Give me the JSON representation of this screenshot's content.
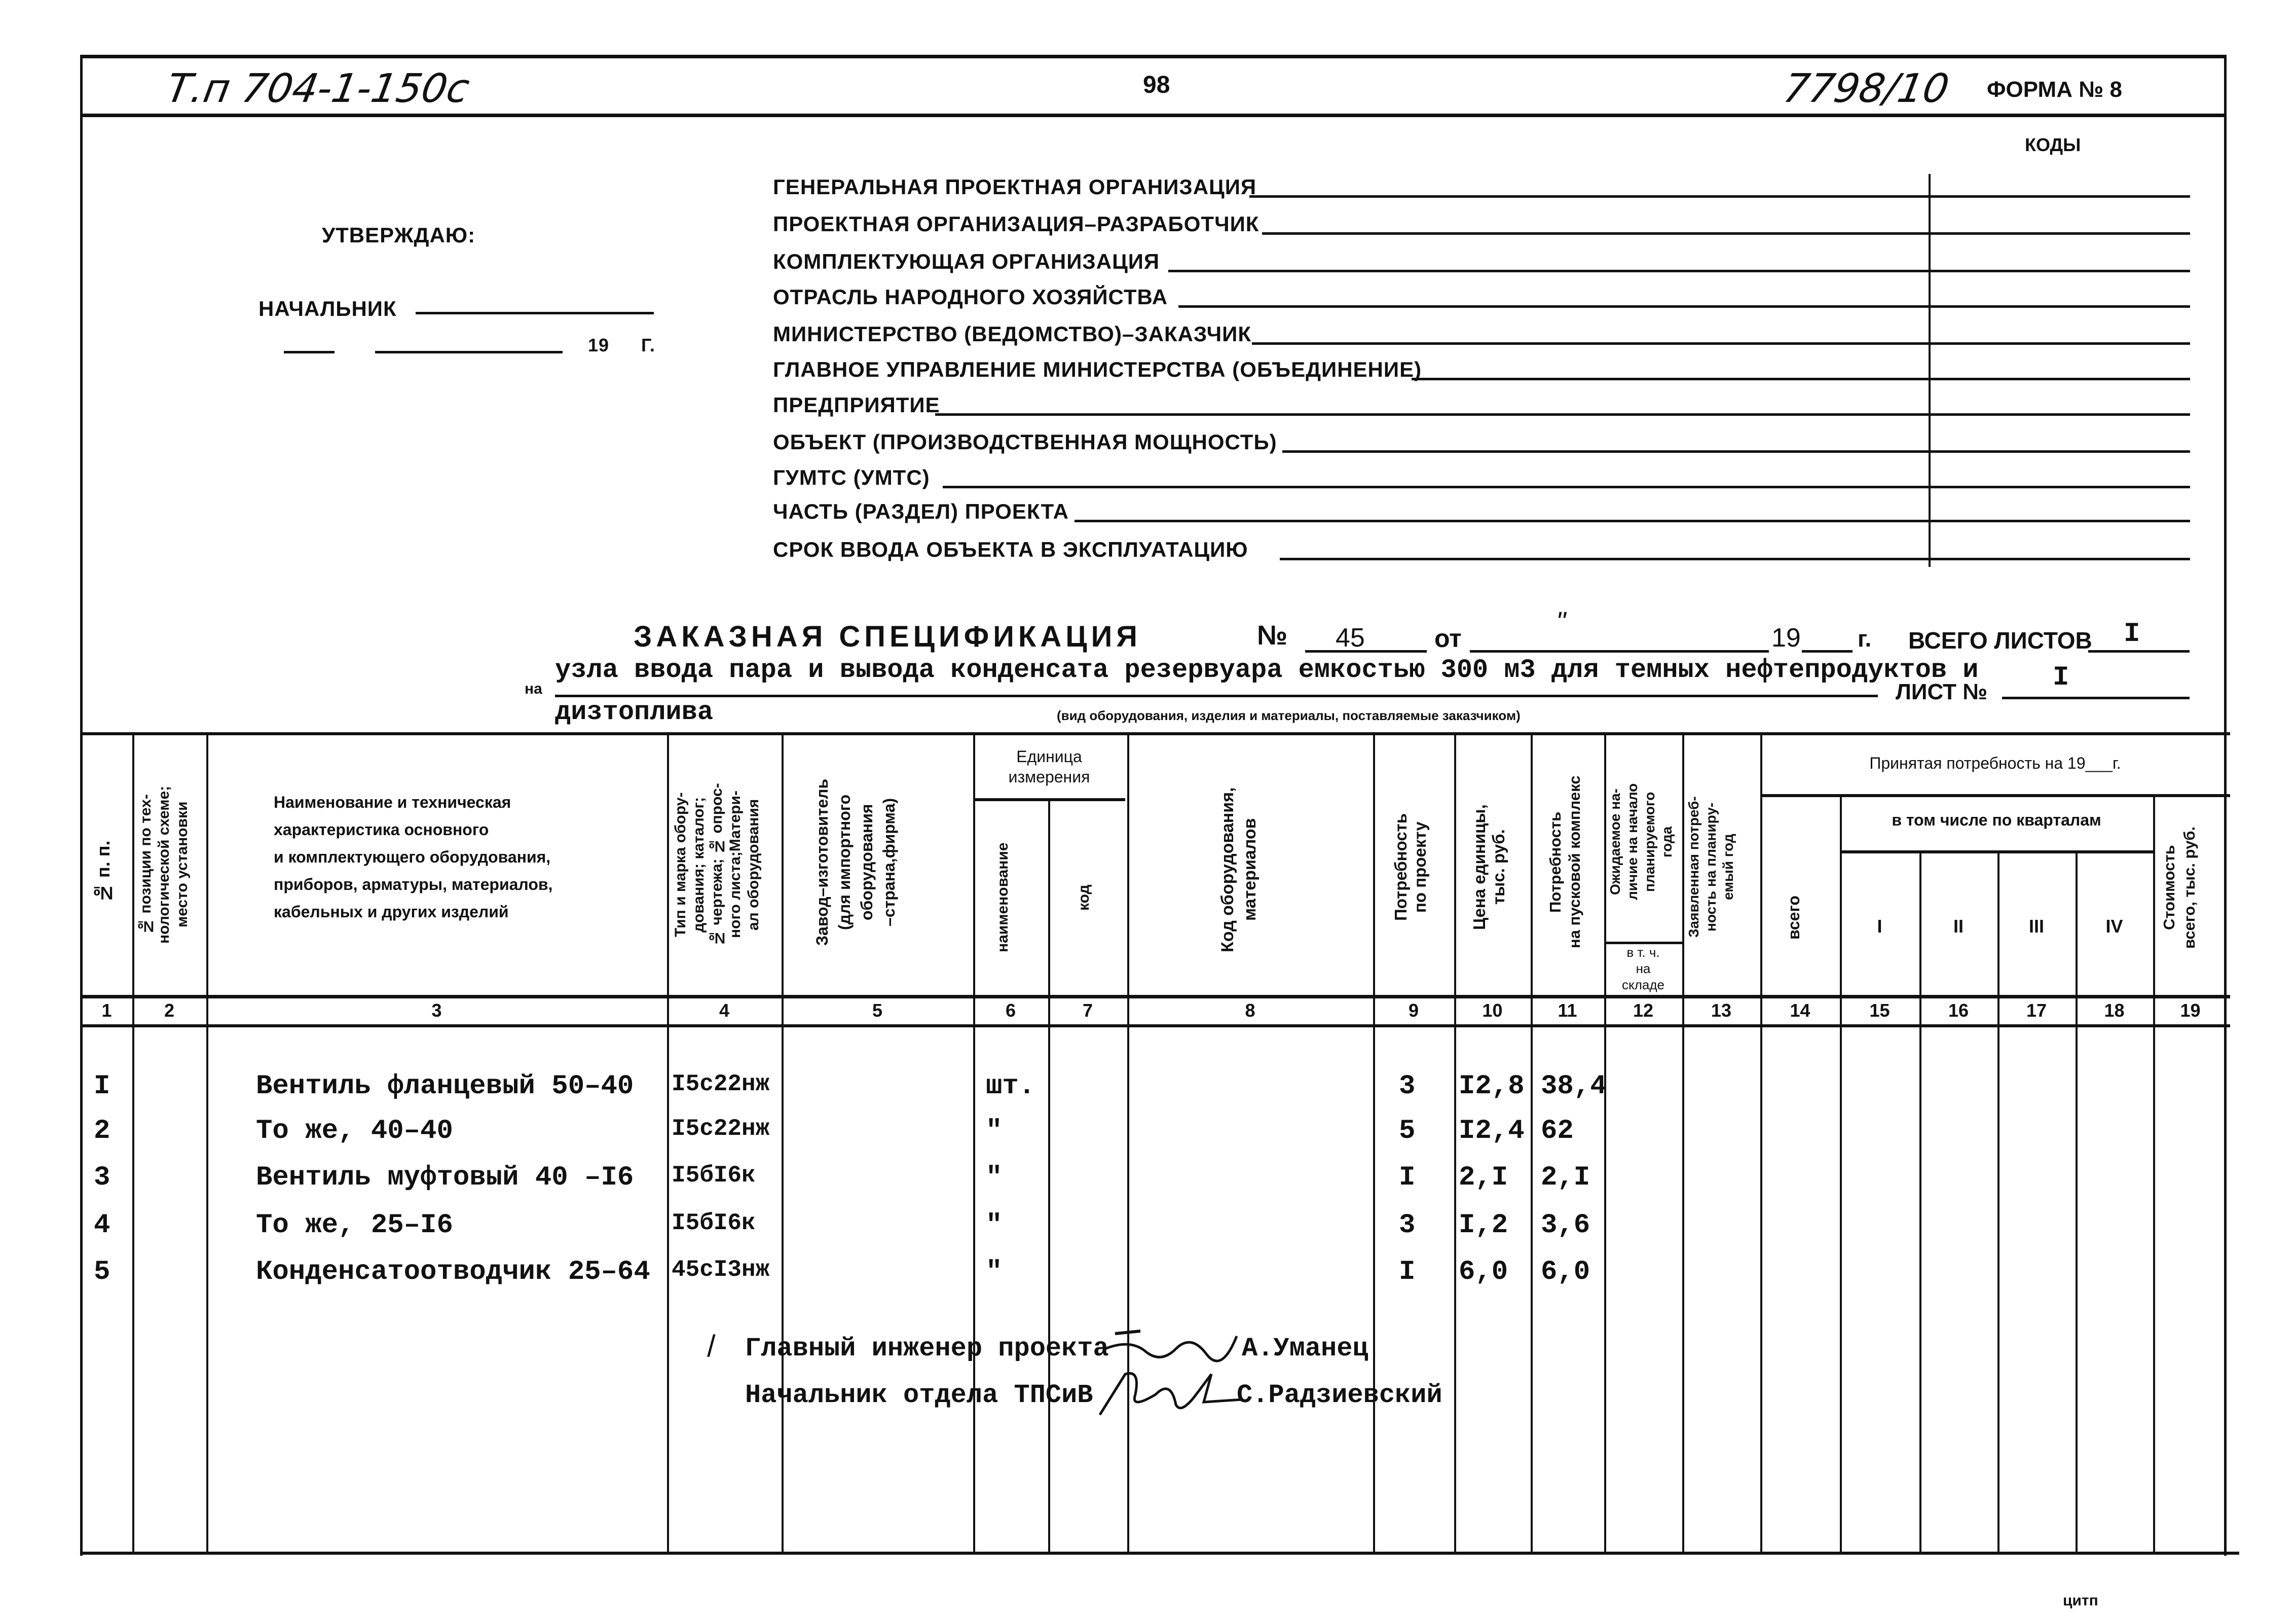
{
  "header": {
    "project_code": "Т.п 704-1-150с",
    "page_number": "98",
    "doc_number": "7798/10",
    "form_label": "ФОРМА № 8",
    "codes_label": "КОДЫ"
  },
  "approval": {
    "approve": "УТВЕРЖДАЮ:",
    "chief": "НАЧАЛЬНИК",
    "year": "19",
    "year_suffix": "г."
  },
  "form_fields": [
    "Генеральная проектная организация",
    "Проектная организация–разработчик",
    "Комплектующая организация",
    "Отрасль народного хозяйства",
    "Министерство (ведомство)–заказчик",
    "Главное управление министерства (объединение)",
    "Предприятие",
    "Объект (производственная мощность)",
    "ГУМТС (УМТС)",
    "Часть (раздел) проекта",
    "Срок ввода объекта в эксплуатацию"
  ],
  "spec": {
    "title": "ЗАКАЗНАЯ СПЕЦИФИКАЦИЯ",
    "no_label": "№",
    "no_value": "45",
    "from_label": "от",
    "date_quote": "\"",
    "year_label": "19",
    "year_suffix": "г.",
    "total_sheets_label": "всего листов",
    "total_sheets_value": "I",
    "on_label": "на",
    "subject_line1": "узла ввода пара и вывода конденсата резервуара емкостью 300 м3 для темных нефтепродуктов и",
    "subject_line2": "дизтоплива",
    "subject_caption": "(вид оборудования, изделия и материалы, поставляемые заказчиком)",
    "sheet_label": "ЛИСТ №",
    "sheet_value": "I"
  },
  "table": {
    "headers": {
      "c1": "№ п. п.",
      "c2": "№ позиции по тех-\nнологической схеме;\nместо установки",
      "c3": "Наименование и техническая\nхарактеристика основного\nи комплектующего оборудования,\nприборов, арматуры, материалов,\nкабельных и других изделий",
      "c4": "Тип и марка обору-\nдования; каталог;\n№ чертежа; № опрос-\nного листа;Матери-\nал оборудования",
      "c5": "Завод–изготовитель\n(для импортного\nоборудования\n–страна,фирма)",
      "unit_group": "Единица\nизмерения",
      "c6": "наименование",
      "c7": "код",
      "c8": "Код оборудования,\nматериалов",
      "c9": "Потребность\nпо проекту",
      "c10": "Цена единицы,\nтыс. руб.",
      "c11": "Потребность\nна пусковой комплекс",
      "c12": "Ожидаемое на-\nличие на начало\nпланируемого\nгода",
      "c12_sub": "в т. ч.\nна\nскладе",
      "c13": "Заявленная потреб-\nность на планиру-\nемый год",
      "accepted_group": "Принятая потребность на 19___г.",
      "c14": "всего",
      "quarters_group": "в том числе по кварталам",
      "q1": "I",
      "q2": "II",
      "q3": "III",
      "q4": "IV",
      "c19": "Стоимость\nвсего, тыс. руб."
    },
    "column_numbers": [
      "1",
      "2",
      "3",
      "4",
      "5",
      "6",
      "7",
      "8",
      "9",
      "10",
      "11",
      "12",
      "13",
      "14",
      "15",
      "16",
      "17",
      "18",
      "19"
    ],
    "rows": [
      {
        "n": "I",
        "name": "Вентиль фланцевый  50–40",
        "type": "I5с22нж",
        "unit": "шт.",
        "qty": "3",
        "price": "I2,8",
        "total": "38,4"
      },
      {
        "n": "2",
        "name": " То же, 40–40",
        "type": "I5с22нж",
        "unit": "\"",
        "qty": "5",
        "price": "I2,4",
        "total": "62"
      },
      {
        "n": "3",
        "name": "Вентиль муфтовый 40 –I6",
        "type": "I5бI6к",
        "unit": "\"",
        "qty": "I",
        "price": "2,I",
        "total": "2,I"
      },
      {
        "n": "4",
        "name": "То же, 25–I6",
        "type": "I5бI6к",
        "unit": "\"",
        "qty": "3",
        "price": "I,2",
        "total": "3,6"
      },
      {
        "n": "5",
        "name": "Конденсатоотводчик 25–64",
        "type": "45сI3нж",
        "unit": "\"",
        "qty": "I",
        "price": "6,0",
        "total": "6,0"
      }
    ]
  },
  "signatures": [
    {
      "title": "Главный инженер проекта",
      "name": "А.Уманец"
    },
    {
      "title": "Начальник отдела ТПСиВ",
      "name": "С.Радзиевский"
    }
  ],
  "footer": {
    "mark": "ЦИТП"
  }
}
